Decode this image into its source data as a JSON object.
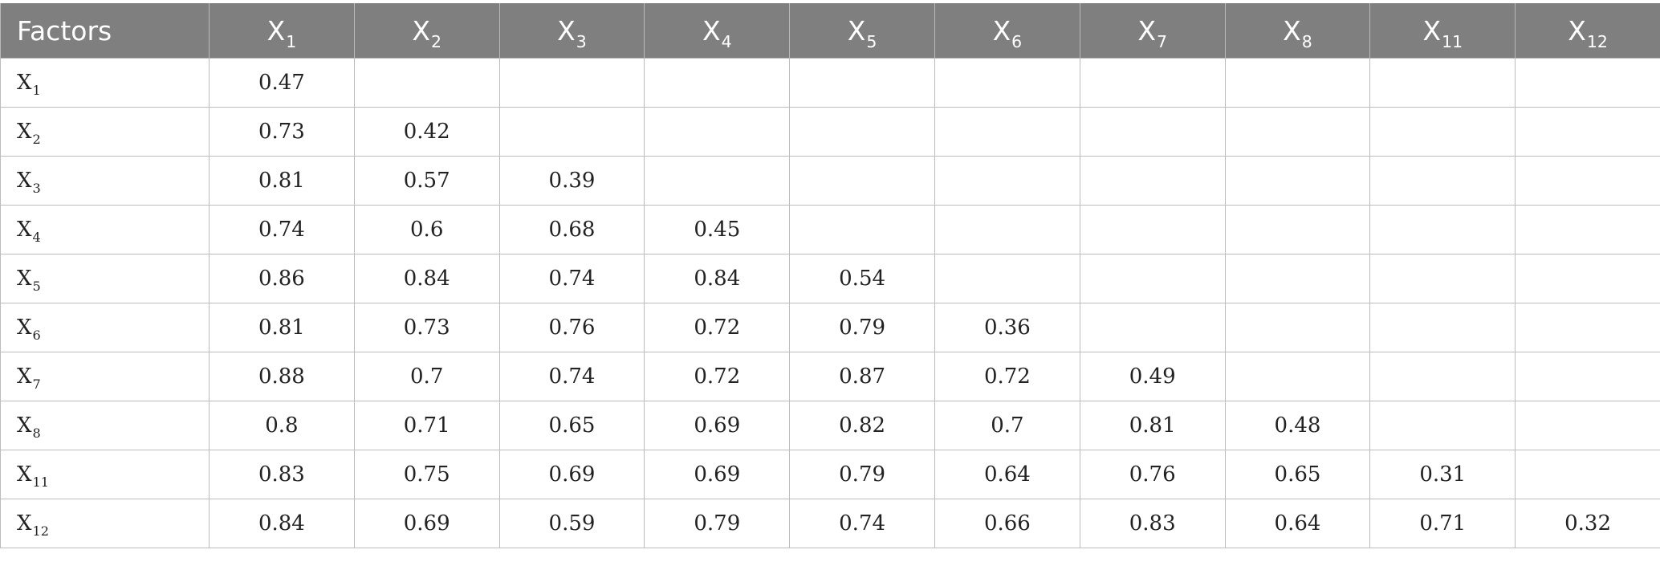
{
  "table": {
    "header": {
      "label": "Factors",
      "columns": [
        {
          "base": "X",
          "sub": "1"
        },
        {
          "base": "X",
          "sub": "2"
        },
        {
          "base": "X",
          "sub": "3"
        },
        {
          "base": "X",
          "sub": "4"
        },
        {
          "base": "X",
          "sub": "5"
        },
        {
          "base": "X",
          "sub": "6"
        },
        {
          "base": "X",
          "sub": "7"
        },
        {
          "base": "X",
          "sub": "8"
        },
        {
          "base": "X",
          "sub": "11"
        },
        {
          "base": "X",
          "sub": "12"
        }
      ]
    },
    "rows": [
      {
        "base": "X",
        "sub": "1",
        "cells": [
          "0.47",
          "",
          "",
          "",
          "",
          "",
          "",
          "",
          "",
          ""
        ]
      },
      {
        "base": "X",
        "sub": "2",
        "cells": [
          "0.73",
          "0.42",
          "",
          "",
          "",
          "",
          "",
          "",
          "",
          ""
        ]
      },
      {
        "base": "X",
        "sub": "3",
        "cells": [
          "0.81",
          "0.57",
          "0.39",
          "",
          "",
          "",
          "",
          "",
          "",
          ""
        ]
      },
      {
        "base": "X",
        "sub": "4",
        "cells": [
          "0.74",
          "0.6",
          "0.68",
          "0.45",
          "",
          "",
          "",
          "",
          "",
          ""
        ]
      },
      {
        "base": "X",
        "sub": "5",
        "cells": [
          "0.86",
          "0.84",
          "0.74",
          "0.84",
          "0.54",
          "",
          "",
          "",
          "",
          ""
        ]
      },
      {
        "base": "X",
        "sub": "6",
        "cells": [
          "0.81",
          "0.73",
          "0.76",
          "0.72",
          "0.79",
          "0.36",
          "",
          "",
          "",
          ""
        ]
      },
      {
        "base": "X",
        "sub": "7",
        "cells": [
          "0.88",
          "0.7",
          "0.74",
          "0.72",
          "0.87",
          "0.72",
          "0.49",
          "",
          "",
          ""
        ]
      },
      {
        "base": "X",
        "sub": "8",
        "cells": [
          "0.8",
          "0.71",
          "0.65",
          "0.69",
          "0.82",
          "0.7",
          "0.81",
          "0.48",
          "",
          ""
        ]
      },
      {
        "base": "X",
        "sub": "11",
        "cells": [
          "0.83",
          "0.75",
          "0.69",
          "0.69",
          "0.79",
          "0.64",
          "0.76",
          "0.65",
          "0.31",
          ""
        ]
      },
      {
        "base": "X",
        "sub": "12",
        "cells": [
          "0.84",
          "0.69",
          "0.59",
          "0.79",
          "0.74",
          "0.66",
          "0.83",
          "0.64",
          "0.71",
          "0.32"
        ]
      }
    ]
  },
  "colors": {
    "header_bg": "#7f7f7f",
    "header_text": "#ffffff",
    "grid_line": "#bcbcbc"
  }
}
